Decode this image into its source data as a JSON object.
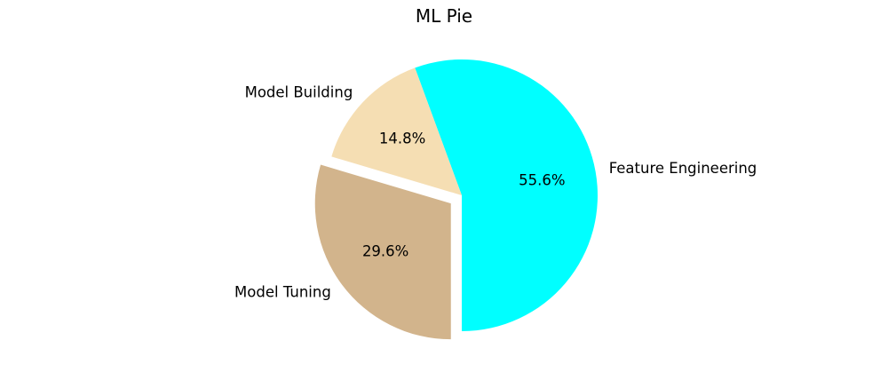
{
  "chart_data": {
    "type": "pie",
    "title": "ML Pie",
    "categories": [
      "Feature Engineering",
      "Model Building",
      "Model Tuning"
    ],
    "values": [
      55.6,
      14.8,
      29.6
    ],
    "value_labels": [
      "55.6%",
      "14.8%",
      "29.6%"
    ],
    "colors": [
      "#00ffff",
      "#f5deb3",
      "#d2b48c"
    ],
    "exploded": [
      false,
      false,
      true
    ],
    "start_angle_deg": -90,
    "direction": "counterclockwise",
    "legend": "none"
  }
}
